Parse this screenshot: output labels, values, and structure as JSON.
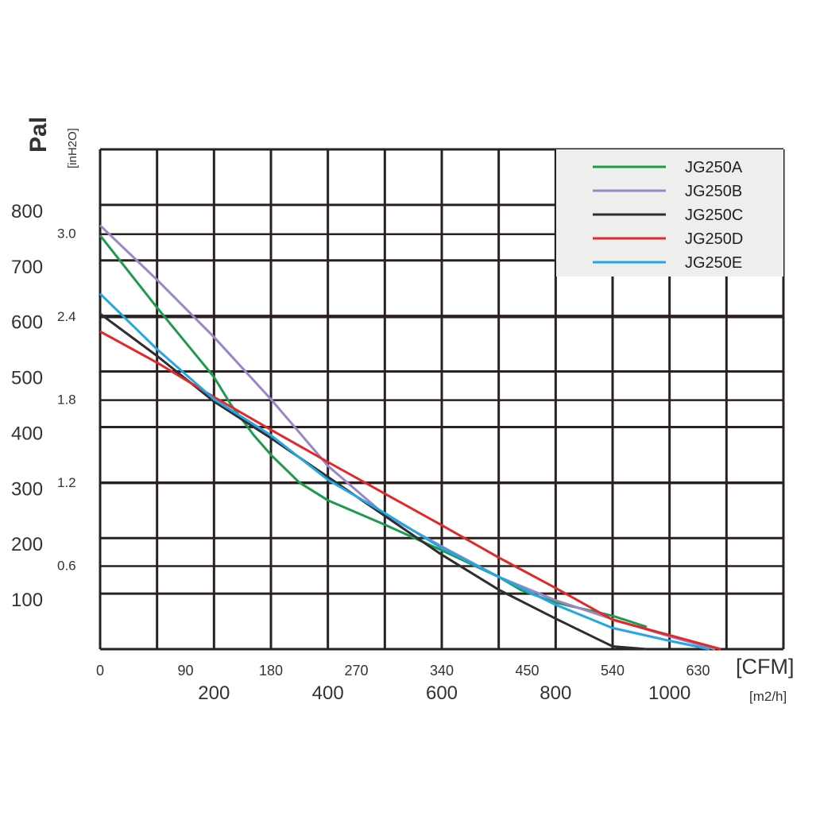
{
  "chart_data": {
    "type": "line",
    "y_primary_label": "Pal",
    "y_secondary_label": "[inH2O]",
    "x_primary_label": "[CFM]",
    "x_secondary_label": "[m2/h]",
    "x_cfm_ticks": [
      "0",
      "90",
      "180",
      "270",
      "340",
      "450",
      "540",
      "630"
    ],
    "x_m3h_ticks": [
      "200",
      "400",
      "600",
      "800",
      "1000"
    ],
    "y_pa_ticks": [
      "800",
      "700",
      "600",
      "500",
      "400",
      "300",
      "200",
      "100"
    ],
    "y_inh2o_ticks": [
      "3.0",
      "2.4",
      "1.8",
      "1.2",
      "0.6"
    ],
    "xlim_m3h": [
      0,
      1200
    ],
    "ylim_pa": [
      0,
      900
    ],
    "grid": true,
    "legend_position": "top-right",
    "series": [
      {
        "name": "JG250A",
        "color": "#1e9a4e",
        "x": [
          0,
          100,
          200,
          230,
          270,
          300,
          350,
          400,
          500,
          600,
          700,
          740,
          800,
          900,
          960
        ],
        "y": [
          745,
          615,
          490,
          440,
          385,
          350,
          300,
          268,
          224,
          178,
          130,
          106,
          84,
          60,
          40
        ]
      },
      {
        "name": "JG250B",
        "color": "#9b85c9",
        "x": [
          0,
          100,
          200,
          300,
          400,
          500,
          600,
          700,
          800,
          900,
          1000,
          1080
        ],
        "y": [
          763,
          665,
          562,
          450,
          330,
          242,
          185,
          130,
          88,
          54,
          23,
          0
        ]
      },
      {
        "name": "JG250C",
        "color": "#2e2e2e",
        "x": [
          0,
          100,
          200,
          300,
          400,
          500,
          600,
          700,
          800,
          900,
          960
        ],
        "y": [
          604,
          528,
          446,
          380,
          310,
          240,
          170,
          107,
          55,
          5,
          0
        ]
      },
      {
        "name": "JG250D",
        "color": "#e02a2a",
        "x": [
          0,
          100,
          200,
          300,
          400,
          500,
          600,
          700,
          800,
          900,
          1000,
          1090
        ],
        "y": [
          572,
          516,
          454,
          395,
          337,
          280,
          223,
          165,
          110,
          53,
          25,
          0
        ]
      },
      {
        "name": "JG250E",
        "color": "#22a6e4",
        "x": [
          0,
          100,
          200,
          300,
          400,
          500,
          600,
          700,
          800,
          900,
          1000,
          1070
        ],
        "y": [
          640,
          540,
          450,
          385,
          305,
          245,
          182,
          130,
          80,
          38,
          15,
          0
        ]
      }
    ]
  }
}
